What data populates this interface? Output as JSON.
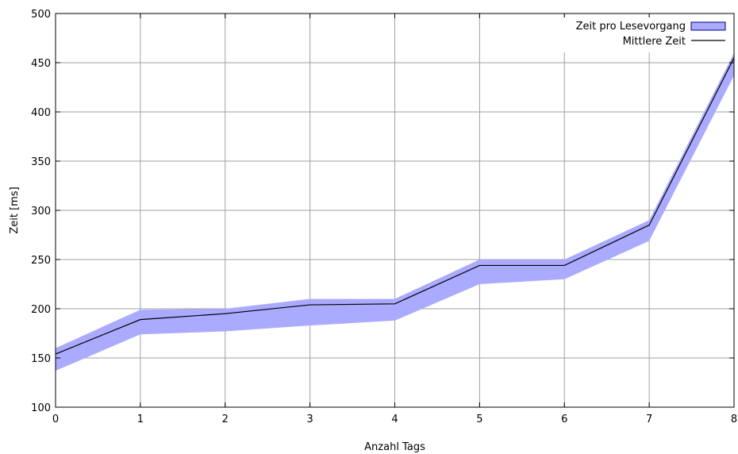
{
  "chart_data": {
    "type": "area",
    "title": "",
    "xlabel": "Anzahl Tags",
    "ylabel": "Zeit [ms]",
    "xlim": [
      0,
      8
    ],
    "ylim": [
      100,
      500
    ],
    "xticks": [
      0,
      1,
      2,
      3,
      4,
      5,
      6,
      7,
      8
    ],
    "yticks": [
      100,
      150,
      200,
      250,
      300,
      350,
      400,
      450,
      500
    ],
    "grid": true,
    "legend_position": "top-right",
    "x": [
      0,
      1,
      2,
      3,
      4,
      5,
      6,
      7,
      8
    ],
    "series": [
      {
        "name": "Zeit pro Lesevorgang",
        "kind": "band",
        "color": "#aaaaff",
        "edge_color": "#000080",
        "lower": [
          137,
          174,
          177,
          183,
          188,
          225,
          230,
          269,
          437
        ],
        "upper": [
          160,
          199,
          200,
          210,
          210,
          250,
          250,
          290,
          460
        ]
      },
      {
        "name": "Mittlere Zeit",
        "kind": "line",
        "color": "#000000",
        "values": [
          154,
          189,
          195,
          204,
          205,
          244,
          244,
          285,
          455
        ]
      }
    ]
  }
}
